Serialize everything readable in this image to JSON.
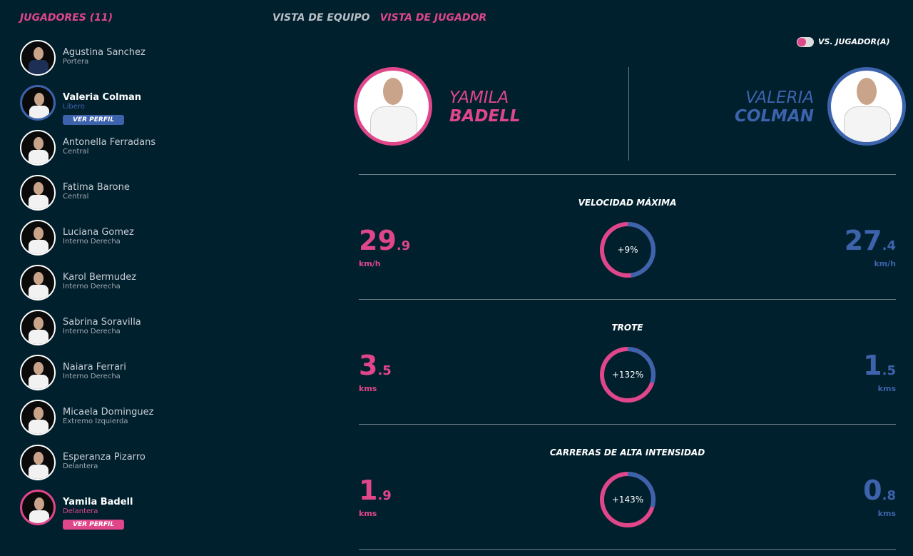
{
  "colors": {
    "pink": "#e0468a",
    "blue": "#3d63ac",
    "background": "#01202e"
  },
  "sidebar": {
    "title": "JUGADORES (11)",
    "view_profile": "VER PERFIL",
    "players": [
      {
        "name": "Agustina Sanchez",
        "position": "Portera"
      },
      {
        "name": "Valeria Colman",
        "position": "Libero",
        "selected": "blue"
      },
      {
        "name": "Antonella Ferradans",
        "position": "Central"
      },
      {
        "name": "Fatima Barone",
        "position": "Central"
      },
      {
        "name": "Luciana Gomez",
        "position": "Interno Derecha"
      },
      {
        "name": "Karol Bermudez",
        "position": "Interno Derecha"
      },
      {
        "name": "Sabrina Soravilla",
        "position": "Interno Derecha"
      },
      {
        "name": "Naiara Ferrari",
        "position": "Interno Derecha"
      },
      {
        "name": "Micaela Dominguez",
        "position": "Extremo Izquierda"
      },
      {
        "name": "Esperanza Pizarro",
        "position": "Delantera"
      },
      {
        "name": "Yamila Badell",
        "position": "Delantera",
        "selected": "pink"
      }
    ]
  },
  "tabs": [
    {
      "label": "VISTA DE EQUIPO",
      "active": false
    },
    {
      "label": "VISTA DE JUGADOR",
      "active": true
    }
  ],
  "toggle": {
    "label": "VS. JUGADOR(A)",
    "on": true
  },
  "compare": {
    "left": {
      "first": "YAMILA",
      "last": "BADELL"
    },
    "right": {
      "first": "VALERIA",
      "last": "COLMAN"
    }
  },
  "stats": [
    {
      "title": "VELOCIDAD MÁXIMA",
      "left_int": "29",
      "left_dec": ".9",
      "right_int": "27",
      "right_dec": ".4",
      "unit": "km/h",
      "diff": "+9%",
      "left_value": 29.9,
      "right_value": 27.4
    },
    {
      "title": "TROTE",
      "left_int": "3",
      "left_dec": ".5",
      "right_int": "1",
      "right_dec": ".5",
      "unit": "kms",
      "diff": "+132%",
      "left_value": 3.5,
      "right_value": 1.5
    },
    {
      "title": "CARRERAS DE ALTA INTENSIDAD",
      "left_int": "1",
      "left_dec": ".9",
      "right_int": "0",
      "right_dec": ".8",
      "unit": "kms",
      "diff": "+143%",
      "left_value": 1.9,
      "right_value": 0.8
    }
  ]
}
